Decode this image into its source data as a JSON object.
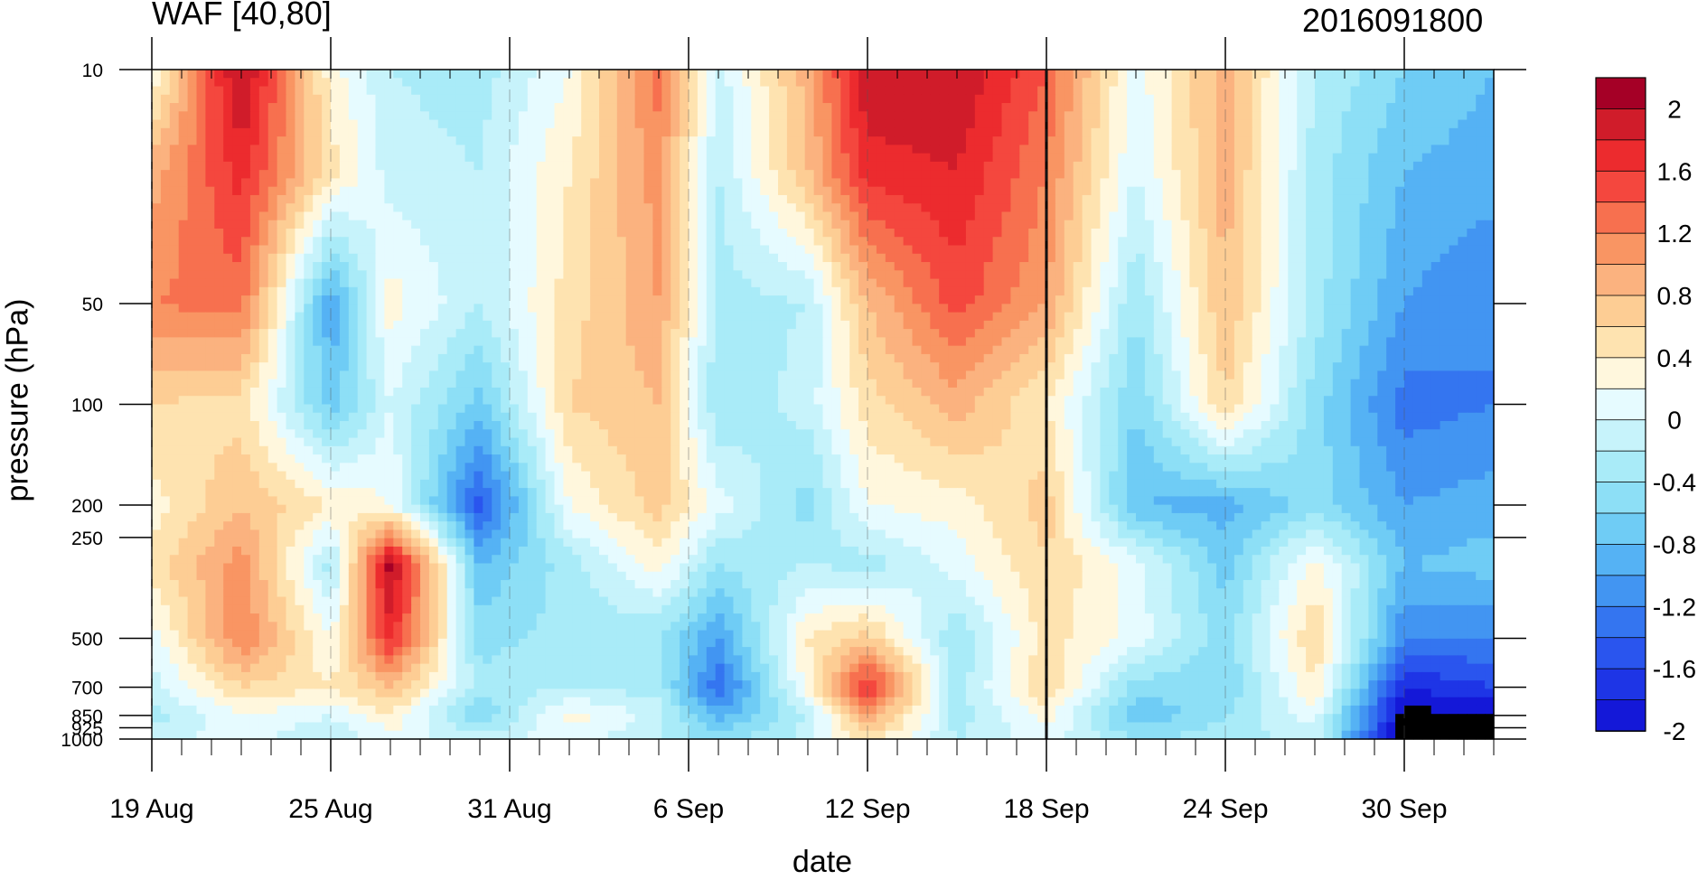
{
  "chart_data": {
    "type": "heatmap",
    "title_left": "WAF [40,80]",
    "title_right": "2016091800",
    "xlabel": "date",
    "ylabel": "pressure (hPa)",
    "x_ticks": [
      "19 Aug",
      "25 Aug",
      "31 Aug",
      "6 Sep",
      "12 Sep",
      "18 Sep",
      "24 Sep",
      "30 Sep"
    ],
    "x_range": [
      "2016-08-19",
      "2016-10-03"
    ],
    "y_scale": "log",
    "y_ticks": [
      "10",
      "50",
      "100",
      "200",
      "250",
      "500",
      "700",
      "850",
      "925",
      "1000"
    ],
    "y_range": [
      1000,
      10
    ],
    "marker_line_date": "2016-09-18",
    "colorbar": {
      "labels": [
        "2",
        "1.6",
        "1.2",
        "0.8",
        "0.4",
        "0",
        "-0.4",
        "-0.8",
        "-1.2",
        "-1.6",
        "-2"
      ],
      "levels": [
        2.2,
        2.0,
        1.8,
        1.6,
        1.4,
        1.2,
        1.0,
        0.8,
        0.6,
        0.4,
        0.2,
        0.0,
        -0.2,
        -0.4,
        -0.6,
        -0.8,
        -1.0,
        -1.2,
        -1.4,
        -1.6,
        -1.8,
        -2.0,
        -2.2
      ],
      "colors": [
        "#a50026",
        "#d01c2a",
        "#ec2b2e",
        "#f4473e",
        "#f7704f",
        "#f99563",
        "#fbb27f",
        "#fdcd94",
        "#fee3b0",
        "#fff7dd",
        "#e6fbff",
        "#c7f3fb",
        "#a9ebf8",
        "#8ddff6",
        "#6fccf5",
        "#55b2f4",
        "#4295f2",
        "#3475f0",
        "#2a55ee",
        "#1e35e6",
        "#1418d8"
      ]
    },
    "dates": [
      "2016-08-19",
      "2016-08-22",
      "2016-08-25",
      "2016-08-27",
      "2016-08-30",
      "2016-09-02",
      "2016-09-05",
      "2016-09-07",
      "2016-09-10",
      "2016-09-12",
      "2016-09-15",
      "2016-09-18",
      "2016-09-21",
      "2016-09-24",
      "2016-09-27",
      "2016-09-30",
      "2016-10-03"
    ],
    "levels_hpa": [
      10,
      20,
      50,
      100,
      200,
      300,
      500,
      700,
      850,
      1000
    ],
    "values": [
      [
        0.2,
        2.1,
        0.3,
        -0.2,
        -0.3,
        0.2,
        1.3,
        -0.1,
        0.9,
        2.0,
        2.0,
        1.4,
        0.1,
        0.9,
        -0.2,
        -0.6,
        -0.8
      ],
      [
        0.9,
        1.7,
        0.5,
        -0.1,
        -0.2,
        0.4,
        1.1,
        -0.2,
        0.8,
        1.7,
        1.8,
        1.2,
        0.0,
        0.9,
        -0.3,
        -0.8,
        -0.9
      ],
      [
        1.2,
        1.3,
        -1.0,
        0.3,
        -0.2,
        0.5,
        1.0,
        -0.3,
        -0.2,
        0.8,
        1.5,
        1.0,
        -0.4,
        0.8,
        -0.3,
        -1.0,
        -1.2
      ],
      [
        0.6,
        0.5,
        -0.7,
        0.0,
        -0.7,
        0.6,
        0.8,
        -0.4,
        -0.1,
        0.5,
        0.9,
        0.4,
        -0.6,
        0.6,
        -0.5,
        -1.3,
        -1.2
      ],
      [
        0.3,
        0.8,
        0.4,
        0.2,
        -1.5,
        0.2,
        0.7,
        0.1,
        -0.5,
        0.2,
        0.3,
        0.7,
        -0.8,
        -0.9,
        -0.5,
        -1.0,
        -0.9
      ],
      [
        0.5,
        1.1,
        -0.3,
        2.1,
        -0.8,
        -0.3,
        0.3,
        -0.4,
        -0.2,
        -0.3,
        0.1,
        0.6,
        0.1,
        -0.7,
        0.3,
        -0.8,
        -0.7
      ],
      [
        0.1,
        1.2,
        0.2,
        1.7,
        -0.5,
        -0.3,
        -0.4,
        -1.0,
        0.4,
        0.7,
        -0.4,
        0.5,
        0.1,
        -0.5,
        0.6,
        -1.2,
        -1.2
      ],
      [
        -0.1,
        0.6,
        0.4,
        0.8,
        -0.3,
        -0.2,
        -0.3,
        -1.4,
        0.3,
        1.7,
        -0.3,
        0.6,
        -0.5,
        -0.6,
        0.4,
        -1.8,
        -1.6
      ],
      [
        -0.3,
        0.2,
        0.0,
        0.4,
        -0.6,
        0.3,
        -0.1,
        -0.9,
        -0.2,
        1.0,
        -0.3,
        0.3,
        -0.8,
        -0.4,
        0.1,
        -2.1,
        -2.0
      ],
      [
        -0.1,
        0.1,
        -0.2,
        0.1,
        -0.1,
        0.1,
        -0.2,
        -0.5,
        -0.1,
        0.5,
        -0.2,
        0.1,
        -0.4,
        -0.3,
        -0.1,
        -2.2,
        -2.2
      ]
    ]
  }
}
